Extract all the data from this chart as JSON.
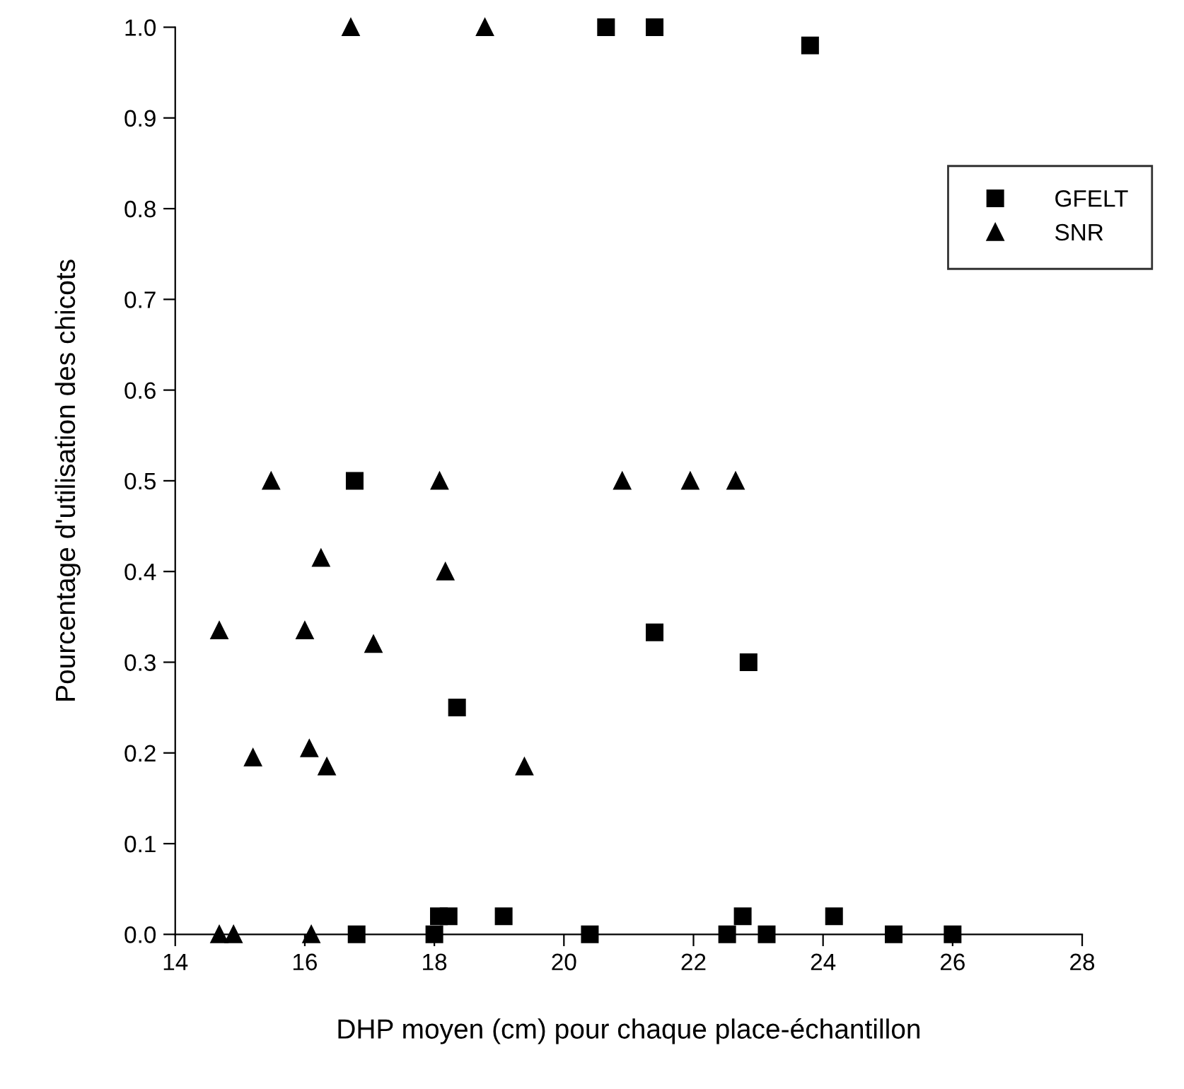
{
  "chart_data": {
    "type": "scatter",
    "xlabel": "DHP moyen (cm) pour chaque place-échantillon",
    "ylabel": "Pourcentage d'utilisation des chicots",
    "xlim": [
      14,
      28
    ],
    "xticks": [
      14,
      16,
      18,
      20,
      22,
      24,
      26,
      28
    ],
    "ylim": [
      0,
      1.0
    ],
    "yticks": [
      {
        "value": 0,
        "label": "0.0"
      },
      {
        "value": 0.1,
        "label": "0.1"
      },
      {
        "value": 0.2,
        "label": "0.2"
      },
      {
        "value": 0.3,
        "label": "0.3"
      },
      {
        "value": 0.4,
        "label": "0.4"
      },
      {
        "value": 0.5,
        "label": "0.5"
      },
      {
        "value": 0.6,
        "label": "0.6"
      },
      {
        "value": 0.7,
        "label": "0.7"
      },
      {
        "value": 0.8,
        "label": "0.8"
      },
      {
        "value": 0.9,
        "label": "0.9"
      },
      {
        "value": 1.0,
        "label": "1.0"
      }
    ],
    "grid": false,
    "legend": "top right",
    "series": [
      {
        "name": "GFELT",
        "color": "#000000",
        "marker": "square",
        "x": [
          16.77,
          20.65,
          21.4,
          23.8,
          21.4,
          22.85,
          18.35,
          16.8,
          18.0,
          18.07,
          18.22,
          19.07,
          20.4,
          22.52,
          22.76,
          23.13,
          24.17,
          25.09,
          26.0
        ],
        "values": [
          0.5,
          1.0,
          1.0,
          0.98,
          0.333,
          0.3,
          0.25,
          0,
          0,
          0.02,
          0.02,
          0.02,
          0,
          0,
          0.02,
          0,
          0.02,
          0,
          0
        ]
      },
      {
        "name": "SNR",
        "color": "#000000",
        "marker": "triangle",
        "x": [
          16.71,
          18.78,
          15.48,
          18.08,
          20.9,
          21.95,
          22.65,
          16.25,
          18.17,
          14.68,
          16.0,
          17.06,
          15.2,
          16.07,
          16.34,
          19.39,
          14.68,
          14.9,
          16.1
        ],
        "values": [
          1.0,
          1.0,
          0.5,
          0.5,
          0.5,
          0.5,
          0.5,
          0.415,
          0.4,
          0.335,
          0.335,
          0.32,
          0.195,
          0.205,
          0.185,
          0.185,
          0,
          0,
          0
        ]
      }
    ]
  }
}
